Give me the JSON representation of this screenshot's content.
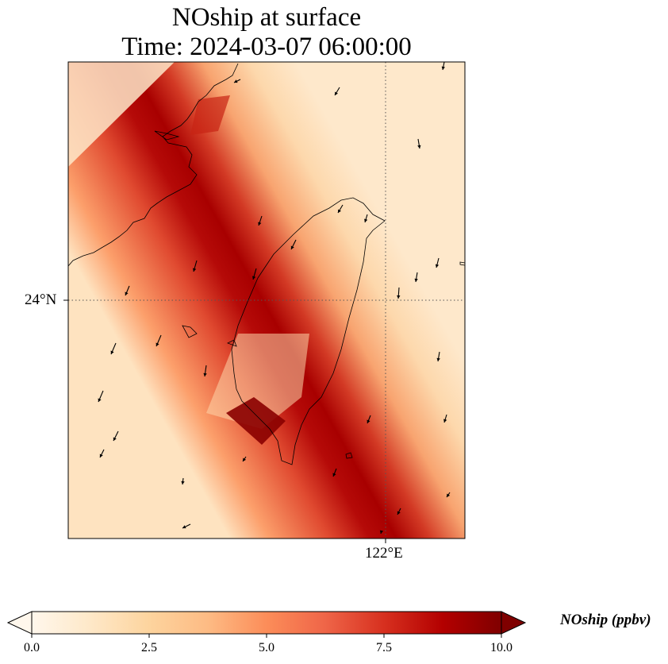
{
  "title": {
    "line1": "NOship at surface",
    "line2": "Time: 2024-03-07 06:00:00"
  },
  "map": {
    "lat_tick_label": "24°N",
    "lon_tick_label": "122°E",
    "gridline_style": "dotted",
    "field_variable": "NOship",
    "plume_description_colors": {
      "low": "#fff5eb",
      "high": "#7f0000"
    }
  },
  "colorbar": {
    "label": "NOship (ppbv)",
    "min": 0.0,
    "max": 10.0,
    "ticks": [
      "0.0",
      "2.5",
      "5.0",
      "7.5",
      "10.0"
    ],
    "tick_values": [
      0.0,
      2.5,
      5.0,
      7.5,
      10.0
    ],
    "extend": "both",
    "colormap": "OrRd",
    "stops": [
      "#fff7ec",
      "#fee8c8",
      "#fdd49e",
      "#fdbb84",
      "#fc8d59",
      "#ef6548",
      "#d7301f",
      "#b30000",
      "#7f0000"
    ]
  }
}
